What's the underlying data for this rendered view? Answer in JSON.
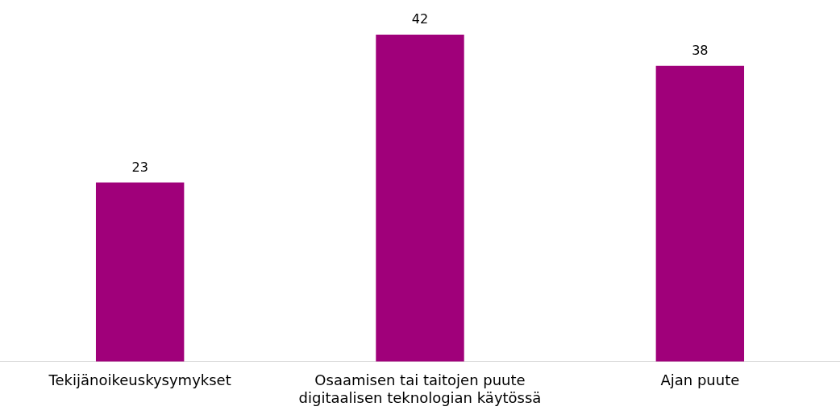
{
  "chart_data": {
    "type": "bar",
    "categories": [
      "Tekijänoikeuskysymykset",
      "Osaamisen tai taitojen puute digitaalisen teknologian käytössä",
      "Ajan puute"
    ],
    "values": [
      23,
      42,
      38
    ],
    "color": "#a0007a",
    "data_labels": true,
    "grid": false,
    "legend": false
  }
}
